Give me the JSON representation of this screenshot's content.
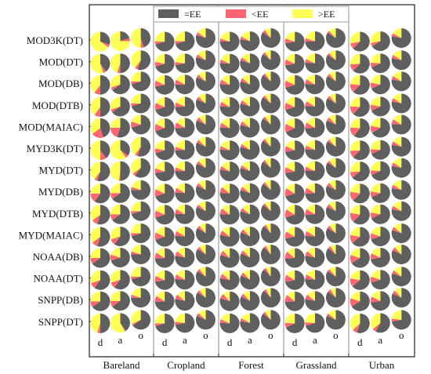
{
  "chart_data": {
    "type": "pie",
    "title": "",
    "xlabel": "",
    "ylabel": "",
    "rows": [
      "MOD3K(DT)",
      "MOD(DT)",
      "MOD(DB)",
      "MOD(DTB)",
      "MOD(MAIAC)",
      "MYD3K(DT)",
      "MYD(DT)",
      "MYD(DB)",
      "MYD(DTB)",
      "MYD(MAIAC)",
      "NOAA(DB)",
      "NOAA(DT)",
      "SNPP(DB)",
      "SNPP(DT)"
    ],
    "groups": [
      "Bareland",
      "Cropland",
      "Forest",
      "Grassland",
      "Urban"
    ],
    "subcolumns": [
      "d",
      "a",
      "o"
    ],
    "legend": {
      "position": "top-center",
      "entries": [
        {
          "name": "=EE",
          "color": "#5f5f5f"
        },
        {
          "name": "<EE",
          "color": "#ff6670"
        },
        {
          "name": ">EE",
          "color": "#ffff55"
        }
      ]
    },
    "slice_order": [
      "=EE",
      "<EE",
      ">EE"
    ],
    "cells": {
      "Bareland": [
        [
          [
            30,
            5,
            65
          ],
          [
            20,
            5,
            75
          ],
          [
            45,
            5,
            50
          ]
        ],
        [
          [
            40,
            5,
            55
          ],
          [
            50,
            5,
            45
          ],
          [
            55,
            5,
            40
          ]
        ],
        [
          [
            50,
            10,
            40
          ],
          [
            65,
            5,
            30
          ],
          [
            70,
            5,
            25
          ]
        ],
        [
          [
            50,
            10,
            40
          ],
          [
            65,
            5,
            30
          ],
          [
            70,
            5,
            25
          ]
        ],
        [
          [
            45,
            20,
            35
          ],
          [
            55,
            20,
            25
          ],
          [
            70,
            10,
            20
          ]
        ],
        [
          [
            40,
            10,
            50
          ],
          [
            35,
            5,
            60
          ],
          [
            55,
            5,
            40
          ]
        ],
        [
          [
            55,
            5,
            40
          ],
          [
            50,
            2,
            48
          ],
          [
            60,
            5,
            35
          ]
        ],
        [
          [
            60,
            15,
            25
          ],
          [
            65,
            10,
            25
          ],
          [
            75,
            5,
            20
          ]
        ],
        [
          [
            55,
            10,
            35
          ],
          [
            65,
            10,
            25
          ],
          [
            70,
            5,
            25
          ]
        ],
        [
          [
            55,
            10,
            35
          ],
          [
            60,
            10,
            30
          ],
          [
            70,
            5,
            25
          ]
        ],
        [
          [
            65,
            10,
            25
          ],
          [
            70,
            10,
            20
          ],
          [
            75,
            5,
            20
          ]
        ],
        [
          [
            60,
            10,
            30
          ],
          [
            60,
            10,
            30
          ],
          [
            70,
            5,
            25
          ]
        ],
        [
          [
            65,
            10,
            25
          ],
          [
            65,
            10,
            25
          ],
          [
            75,
            5,
            20
          ]
        ],
        [
          [
            50,
            5,
            45
          ],
          [
            40,
            2,
            58
          ],
          [
            65,
            3,
            32
          ]
        ]
      ],
      "Cropland": [
        [
          [
            70,
            5,
            25
          ],
          [
            70,
            5,
            25
          ],
          [
            80,
            5,
            15
          ]
        ],
        [
          [
            70,
            8,
            22
          ],
          [
            72,
            5,
            23
          ],
          [
            80,
            5,
            15
          ]
        ],
        [
          [
            72,
            10,
            18
          ],
          [
            75,
            8,
            17
          ],
          [
            82,
            5,
            13
          ]
        ],
        [
          [
            70,
            12,
            18
          ],
          [
            74,
            8,
            18
          ],
          [
            82,
            5,
            13
          ]
        ],
        [
          [
            70,
            12,
            18
          ],
          [
            74,
            10,
            16
          ],
          [
            82,
            6,
            12
          ]
        ],
        [
          [
            70,
            8,
            22
          ],
          [
            74,
            6,
            20
          ],
          [
            82,
            5,
            13
          ]
        ],
        [
          [
            72,
            8,
            20
          ],
          [
            75,
            6,
            19
          ],
          [
            82,
            5,
            13
          ]
        ],
        [
          [
            70,
            12,
            18
          ],
          [
            76,
            8,
            16
          ],
          [
            82,
            5,
            13
          ]
        ],
        [
          [
            70,
            12,
            18
          ],
          [
            76,
            8,
            16
          ],
          [
            82,
            5,
            13
          ]
        ],
        [
          [
            70,
            12,
            18
          ],
          [
            76,
            8,
            16
          ],
          [
            84,
            5,
            11
          ]
        ],
        [
          [
            74,
            10,
            16
          ],
          [
            78,
            8,
            14
          ],
          [
            84,
            5,
            11
          ]
        ],
        [
          [
            72,
            10,
            18
          ],
          [
            76,
            8,
            16
          ],
          [
            84,
            5,
            11
          ]
        ],
        [
          [
            74,
            10,
            16
          ],
          [
            78,
            8,
            14
          ],
          [
            84,
            5,
            11
          ]
        ],
        [
          [
            70,
            5,
            25
          ],
          [
            72,
            5,
            23
          ],
          [
            82,
            5,
            13
          ]
        ]
      ],
      "Forest": [
        [
          [
            75,
            5,
            20
          ],
          [
            78,
            5,
            17
          ],
          [
            85,
            5,
            10
          ]
        ],
        [
          [
            76,
            6,
            18
          ],
          [
            80,
            5,
            15
          ],
          [
            86,
            4,
            10
          ]
        ],
        [
          [
            76,
            8,
            16
          ],
          [
            80,
            6,
            14
          ],
          [
            86,
            4,
            10
          ]
        ],
        [
          [
            76,
            8,
            16
          ],
          [
            80,
            6,
            14
          ],
          [
            86,
            4,
            10
          ]
        ],
        [
          [
            76,
            8,
            16
          ],
          [
            80,
            6,
            14
          ],
          [
            86,
            4,
            10
          ]
        ],
        [
          [
            76,
            6,
            18
          ],
          [
            80,
            5,
            15
          ],
          [
            86,
            4,
            10
          ]
        ],
        [
          [
            78,
            6,
            16
          ],
          [
            80,
            5,
            15
          ],
          [
            86,
            4,
            10
          ]
        ],
        [
          [
            76,
            10,
            14
          ],
          [
            80,
            6,
            14
          ],
          [
            86,
            4,
            10
          ]
        ],
        [
          [
            76,
            10,
            14
          ],
          [
            80,
            6,
            14
          ],
          [
            86,
            4,
            10
          ]
        ],
        [
          [
            78,
            8,
            14
          ],
          [
            82,
            6,
            12
          ],
          [
            88,
            4,
            8
          ]
        ],
        [
          [
            80,
            8,
            12
          ],
          [
            82,
            6,
            12
          ],
          [
            88,
            4,
            8
          ]
        ],
        [
          [
            78,
            8,
            14
          ],
          [
            82,
            6,
            12
          ],
          [
            88,
            4,
            8
          ]
        ],
        [
          [
            80,
            8,
            12
          ],
          [
            82,
            6,
            12
          ],
          [
            88,
            4,
            8
          ]
        ],
        [
          [
            76,
            6,
            18
          ],
          [
            78,
            5,
            17
          ],
          [
            86,
            4,
            10
          ]
        ]
      ],
      "Grassland": [
        [
          [
            72,
            8,
            20
          ],
          [
            74,
            6,
            20
          ],
          [
            84,
            4,
            12
          ]
        ],
        [
          [
            72,
            10,
            18
          ],
          [
            76,
            6,
            18
          ],
          [
            84,
            4,
            12
          ]
        ],
        [
          [
            70,
            12,
            18
          ],
          [
            76,
            8,
            16
          ],
          [
            84,
            5,
            11
          ]
        ],
        [
          [
            70,
            12,
            18
          ],
          [
            76,
            8,
            16
          ],
          [
            84,
            5,
            11
          ]
        ],
        [
          [
            68,
            14,
            18
          ],
          [
            74,
            10,
            16
          ],
          [
            82,
            6,
            12
          ]
        ],
        [
          [
            72,
            10,
            18
          ],
          [
            76,
            6,
            18
          ],
          [
            84,
            4,
            12
          ]
        ],
        [
          [
            72,
            10,
            18
          ],
          [
            76,
            6,
            18
          ],
          [
            84,
            4,
            12
          ]
        ],
        [
          [
            70,
            14,
            16
          ],
          [
            74,
            10,
            16
          ],
          [
            82,
            6,
            12
          ]
        ],
        [
          [
            70,
            14,
            16
          ],
          [
            74,
            10,
            16
          ],
          [
            82,
            6,
            12
          ]
        ],
        [
          [
            72,
            12,
            16
          ],
          [
            76,
            8,
            16
          ],
          [
            84,
            5,
            11
          ]
        ],
        [
          [
            74,
            12,
            14
          ],
          [
            78,
            8,
            14
          ],
          [
            86,
            5,
            9
          ]
        ],
        [
          [
            72,
            12,
            16
          ],
          [
            76,
            8,
            16
          ],
          [
            84,
            5,
            11
          ]
        ],
        [
          [
            74,
            12,
            14
          ],
          [
            78,
            8,
            14
          ],
          [
            86,
            5,
            9
          ]
        ],
        [
          [
            68,
            8,
            24
          ],
          [
            70,
            6,
            24
          ],
          [
            82,
            4,
            14
          ]
        ]
      ],
      "Urban": [
        [
          [
            62,
            10,
            28
          ],
          [
            66,
            6,
            28
          ],
          [
            78,
            5,
            17
          ]
        ],
        [
          [
            62,
            12,
            26
          ],
          [
            68,
            8,
            24
          ],
          [
            78,
            6,
            16
          ]
        ],
        [
          [
            62,
            14,
            24
          ],
          [
            68,
            10,
            22
          ],
          [
            78,
            6,
            16
          ]
        ],
        [
          [
            62,
            14,
            24
          ],
          [
            68,
            10,
            22
          ],
          [
            78,
            6,
            16
          ]
        ],
        [
          [
            60,
            16,
            24
          ],
          [
            66,
            12,
            22
          ],
          [
            76,
            8,
            16
          ]
        ],
        [
          [
            62,
            12,
            26
          ],
          [
            68,
            8,
            24
          ],
          [
            78,
            6,
            16
          ]
        ],
        [
          [
            64,
            10,
            26
          ],
          [
            68,
            8,
            24
          ],
          [
            78,
            6,
            16
          ]
        ],
        [
          [
            62,
            16,
            22
          ],
          [
            68,
            10,
            22
          ],
          [
            78,
            6,
            16
          ]
        ],
        [
          [
            62,
            16,
            22
          ],
          [
            68,
            10,
            22
          ],
          [
            78,
            6,
            16
          ]
        ],
        [
          [
            64,
            14,
            22
          ],
          [
            70,
            10,
            20
          ],
          [
            80,
            6,
            14
          ]
        ],
        [
          [
            66,
            14,
            20
          ],
          [
            72,
            10,
            18
          ],
          [
            82,
            6,
            12
          ]
        ],
        [
          [
            64,
            14,
            22
          ],
          [
            70,
            10,
            20
          ],
          [
            80,
            6,
            14
          ]
        ],
        [
          [
            66,
            14,
            20
          ],
          [
            72,
            10,
            18
          ],
          [
            82,
            6,
            12
          ]
        ],
        [
          [
            55,
            8,
            37
          ],
          [
            58,
            6,
            36
          ],
          [
            72,
            5,
            23
          ]
        ]
      ]
    }
  }
}
